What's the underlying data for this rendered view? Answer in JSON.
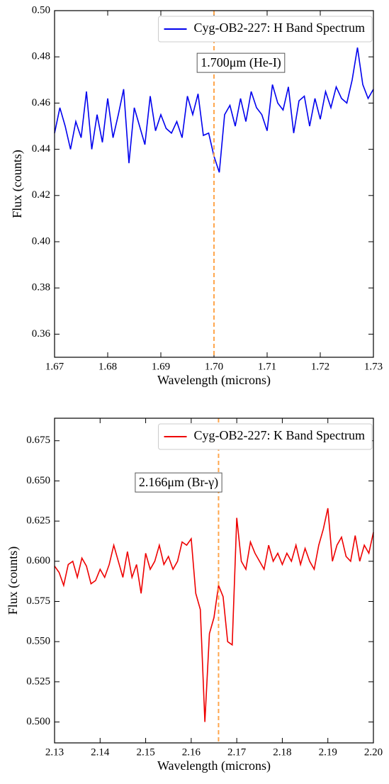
{
  "chart_data": [
    {
      "type": "line",
      "xlabel": "Wavelength (microns)",
      "ylabel": "Flux (counts)",
      "x": [
        1.67,
        1.671,
        1.672,
        1.673,
        1.674,
        1.675,
        1.676,
        1.677,
        1.678,
        1.679,
        1.68,
        1.681,
        1.682,
        1.683,
        1.684,
        1.685,
        1.686,
        1.687,
        1.688,
        1.689,
        1.69,
        1.691,
        1.692,
        1.693,
        1.694,
        1.695,
        1.696,
        1.697,
        1.698,
        1.699,
        1.7,
        1.701,
        1.702,
        1.703,
        1.704,
        1.705,
        1.706,
        1.707,
        1.708,
        1.709,
        1.71,
        1.711,
        1.712,
        1.713,
        1.714,
        1.715,
        1.716,
        1.717,
        1.718,
        1.719,
        1.72,
        1.721,
        1.722,
        1.723,
        1.724,
        1.725,
        1.726,
        1.727,
        1.728,
        1.729,
        1.73
      ],
      "series": [
        {
          "name": "Cyg-OB2-227: H Band Spectrum",
          "color": "#0000ee",
          "values": [
            0.447,
            0.458,
            0.45,
            0.44,
            0.452,
            0.445,
            0.465,
            0.44,
            0.455,
            0.443,
            0.462,
            0.445,
            0.455,
            0.466,
            0.434,
            0.458,
            0.45,
            0.442,
            0.463,
            0.448,
            0.455,
            0.449,
            0.447,
            0.452,
            0.445,
            0.463,
            0.455,
            0.464,
            0.446,
            0.447,
            0.437,
            0.43,
            0.455,
            0.459,
            0.45,
            0.462,
            0.452,
            0.465,
            0.458,
            0.455,
            0.448,
            0.468,
            0.46,
            0.457,
            0.467,
            0.447,
            0.461,
            0.463,
            0.45,
            0.462,
            0.453,
            0.465,
            0.458,
            0.467,
            0.462,
            0.46,
            0.47,
            0.484,
            0.468,
            0.462,
            0.466
          ]
        }
      ],
      "xlim": [
        1.67,
        1.73
      ],
      "ylim": [
        0.35,
        0.5
      ],
      "xticks": [
        1.67,
        1.68,
        1.69,
        {
          "value": 1.7,
          "label": "1.70"
        },
        1.71,
        1.72,
        1.73
      ],
      "yticks": [
        0.36,
        0.38,
        {
          "value": 0.4,
          "label": "0.40"
        },
        0.42,
        0.44,
        0.46,
        0.48,
        {
          "value": 0.5,
          "label": "0.50"
        }
      ],
      "vline": 1.7,
      "vline_color": "#ffa64d",
      "annotation": "1.700μm (He-I)",
      "legend": "upper right"
    },
    {
      "type": "line",
      "xlabel": "Wavelength (microns)",
      "ylabel": "Flux (counts)",
      "x": [
        2.13,
        2.131,
        2.132,
        2.133,
        2.134,
        2.135,
        2.136,
        2.137,
        2.138,
        2.139,
        2.14,
        2.141,
        2.142,
        2.143,
        2.144,
        2.145,
        2.146,
        2.147,
        2.148,
        2.149,
        2.15,
        2.151,
        2.152,
        2.153,
        2.154,
        2.155,
        2.156,
        2.157,
        2.158,
        2.159,
        2.16,
        2.161,
        2.162,
        2.163,
        2.164,
        2.165,
        2.166,
        2.167,
        2.168,
        2.169,
        2.17,
        2.171,
        2.172,
        2.173,
        2.174,
        2.175,
        2.176,
        2.177,
        2.178,
        2.179,
        2.18,
        2.181,
        2.182,
        2.183,
        2.184,
        2.185,
        2.186,
        2.187,
        2.188,
        2.189,
        2.19,
        2.191,
        2.192,
        2.193,
        2.194,
        2.195,
        2.196,
        2.197,
        2.198,
        2.199,
        2.2
      ],
      "series": [
        {
          "name": "Cyg-OB2-227: K Band Spectrum",
          "color": "#ee0000",
          "values": [
            0.597,
            0.593,
            0.585,
            0.598,
            0.6,
            0.59,
            0.602,
            0.597,
            0.586,
            0.588,
            0.595,
            0.59,
            0.598,
            0.61,
            0.6,
            0.59,
            0.606,
            0.59,
            0.598,
            0.58,
            0.605,
            0.595,
            0.6,
            0.61,
            0.598,
            0.603,
            0.595,
            0.6,
            0.612,
            0.61,
            0.614,
            0.58,
            0.57,
            0.5,
            0.555,
            0.565,
            0.585,
            0.578,
            0.55,
            0.548,
            0.627,
            0.6,
            0.595,
            0.612,
            0.605,
            0.6,
            0.595,
            0.61,
            0.6,
            0.605,
            0.598,
            0.605,
            0.6,
            0.61,
            0.598,
            0.608,
            0.6,
            0.595,
            0.61,
            0.62,
            0.633,
            0.6,
            0.61,
            0.615,
            0.603,
            0.6,
            0.616,
            0.6,
            0.61,
            0.605,
            0.618
          ]
        }
      ],
      "xlim": [
        2.13,
        2.2
      ],
      "ylim": [
        0.487,
        0.689
      ],
      "xticks": [
        2.13,
        2.14,
        2.15,
        2.16,
        2.17,
        2.18,
        2.19,
        {
          "value": 2.2,
          "label": "2.20"
        }
      ],
      "yticks": [
        {
          "value": 0.5,
          "label": "0.500"
        },
        0.525,
        {
          "value": 0.55,
          "label": "0.550"
        },
        0.575,
        {
          "value": 0.6,
          "label": "0.600"
        },
        0.625,
        {
          "value": 0.65,
          "label": "0.650"
        },
        0.675
      ],
      "vline": 2.166,
      "vline_color": "#ffa64d",
      "annotation": "2.166μm (Br-γ)",
      "legend": "upper right"
    }
  ]
}
